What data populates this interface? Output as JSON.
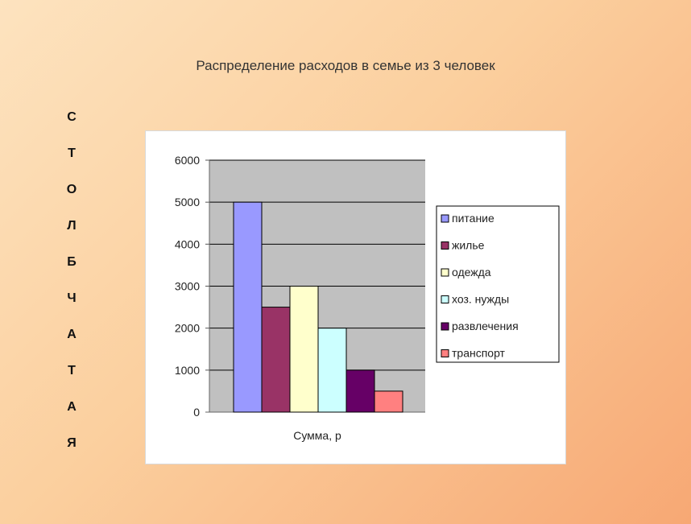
{
  "chart_data": {
    "type": "bar",
    "title": "Распределение расходов в семье из 3 человек",
    "side_label": "столбчатая",
    "xlabel": "Сумма, р",
    "ylim": [
      0,
      6000
    ],
    "yticks": [
      0,
      1000,
      2000,
      3000,
      4000,
      5000,
      6000
    ],
    "grid": true,
    "legend_position": "right",
    "series": [
      {
        "name": "питание",
        "value": 5000,
        "color": "#9999ff"
      },
      {
        "name": "жилье",
        "value": 2500,
        "color": "#993366"
      },
      {
        "name": "одежда",
        "value": 3000,
        "color": "#ffffcc"
      },
      {
        "name": "хоз. нужды",
        "value": 2000,
        "color": "#ccffff"
      },
      {
        "name": "развлечения",
        "value": 1000,
        "color": "#660066"
      },
      {
        "name": "транспорт",
        "value": 500,
        "color": "#ff8080"
      }
    ]
  }
}
